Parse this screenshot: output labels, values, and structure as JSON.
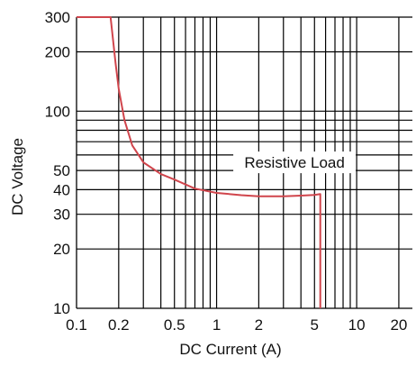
{
  "chart_data": {
    "type": "line",
    "xscale": "log",
    "yscale": "log",
    "xlim": [
      0.1,
      25
    ],
    "ylim": [
      10,
      300
    ],
    "xlabel": "DC Current (A)",
    "ylabel": "DC Voltage",
    "xticks": [
      {
        "value": 0.1,
        "label": "0.1"
      },
      {
        "value": 0.2,
        "label": "0.2"
      },
      {
        "value": 0.5,
        "label": "0.5"
      },
      {
        "value": 1,
        "label": "1"
      },
      {
        "value": 2,
        "label": "2"
      },
      {
        "value": 5,
        "label": "5"
      },
      {
        "value": 10,
        "label": "10"
      },
      {
        "value": 20,
        "label": "20"
      }
    ],
    "xgrid": [
      0.2,
      0.3,
      0.4,
      0.5,
      0.6,
      0.7,
      0.8,
      0.9,
      1,
      2,
      3,
      4,
      5,
      6,
      7,
      8,
      9,
      10,
      20
    ],
    "yticks": [
      {
        "value": 10,
        "label": "10"
      },
      {
        "value": 20,
        "label": "20"
      },
      {
        "value": 30,
        "label": "30"
      },
      {
        "value": 40,
        "label": "40"
      },
      {
        "value": 50,
        "label": "50"
      },
      {
        "value": 100,
        "label": "100"
      },
      {
        "value": 200,
        "label": "200"
      },
      {
        "value": 300,
        "label": "300"
      }
    ],
    "ygrid": [
      20,
      30,
      40,
      50,
      60,
      70,
      80,
      90,
      100,
      200
    ],
    "grid": true,
    "line_color": "#d0454c",
    "series": [
      {
        "name": "Resistive Load",
        "x": [
          0.1,
          0.175,
          0.19,
          0.2,
          0.22,
          0.25,
          0.3,
          0.4,
          0.5,
          0.7,
          1,
          1.5,
          2,
          3,
          4,
          5,
          5.5,
          5.5
        ],
        "y": [
          300,
          300,
          175,
          130,
          90,
          67,
          55,
          48,
          45,
          40.5,
          38.5,
          37.5,
          37,
          37,
          37.3,
          37.6,
          38,
          10
        ]
      }
    ],
    "annotations": [
      {
        "text": "Resistive Load",
        "x": 3.6,
        "y": 55
      }
    ]
  }
}
